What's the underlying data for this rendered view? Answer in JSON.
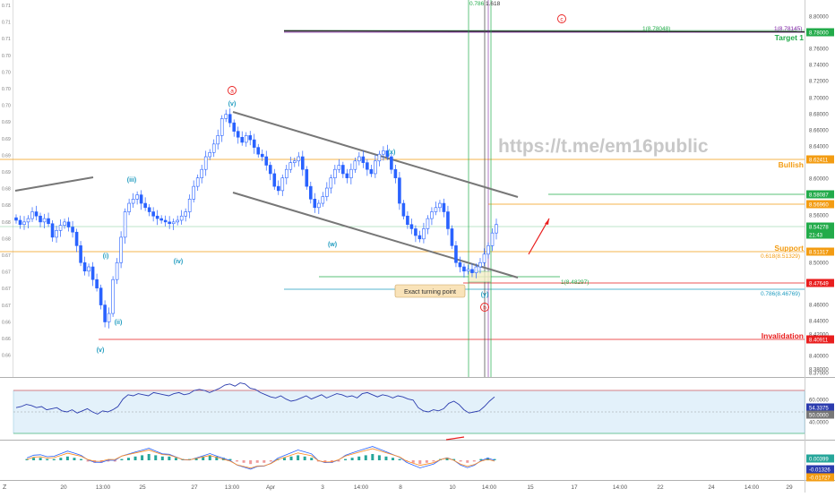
{
  "watermark": "https://t.me/em16public",
  "annotations": {
    "wave_a": "a",
    "wave_b": "b",
    "wave_c": "c",
    "wave_i": "(i)",
    "wave_ii": "(ii)",
    "wave_iii": "(iii)",
    "wave_iv": "(iv)",
    "wave_v_top": "(v)",
    "wave_v_low": "(v)",
    "wave_w": "(w)",
    "wave_x": "(x)",
    "wave_y": "(y)",
    "turning_point": "Exact turning point",
    "target": "Target 1",
    "bullish": "Bullish",
    "support": "Support",
    "invalidation": "Invalidation",
    "fib_top": "0.786",
    "fib_top2": "1.618",
    "fib_1": "1(8.78048)",
    "fib_1b": "1(8.78145)",
    "fib_618": "0.618(8.51329)",
    "fib_1c": "1(8.48297)",
    "fib_786": "0.786(8.46769)"
  },
  "colors": {
    "candle": "#2962ff",
    "green": "#22ab4a",
    "orange": "#f39c12",
    "red": "#e91e1e",
    "cyan": "#1e9bbf",
    "channel": "#777777"
  },
  "price_axis": [
    {
      "text": "8.80000"
    },
    {
      "text": "8.78000",
      "badge": "green"
    },
    {
      "text": "8.76000"
    },
    {
      "text": "8.74000"
    },
    {
      "text": "8.72000"
    },
    {
      "text": "8.70000"
    },
    {
      "text": "8.68000"
    },
    {
      "text": "8.66000"
    },
    {
      "text": "8.64000"
    },
    {
      "text": "8.62411",
      "badge": "orange"
    },
    {
      "text": "8.60000"
    },
    {
      "text": "8.58087",
      "badge": "green"
    },
    {
      "text": "8.56960",
      "badge": "orange"
    },
    {
      "text": "8.56000"
    },
    {
      "text": "8.54278",
      "badge": "green"
    },
    {
      "text": "21:43",
      "badge": "green"
    },
    {
      "text": "8.51317",
      "badge": "orange"
    },
    {
      "text": "8.50000"
    },
    {
      "text": "8.47649",
      "badge": "red"
    },
    {
      "text": "8.46000"
    },
    {
      "text": "8.44000"
    },
    {
      "text": "8.42000"
    },
    {
      "text": "8.40911",
      "badge": "red"
    },
    {
      "text": "8.40000"
    },
    {
      "text": "8.38000"
    },
    {
      "text": "8.37000"
    }
  ],
  "left_axis": [
    "0.71",
    "0.71",
    "0.71",
    "0.70",
    "0.70",
    "0.70",
    "0.70",
    "0.69",
    "0.69",
    "0.69",
    "0.69",
    "0.68",
    "0.68",
    "0.68",
    "0.68",
    "0.67",
    "0.67",
    "0.67",
    "0.67",
    "0.66",
    "0.66",
    "0.66"
  ],
  "time_axis": [
    "20",
    "13:00",
    "25",
    "27",
    "13:00",
    "Apr",
    "3",
    "14:00",
    "8",
    "10",
    "14:00",
    "15",
    "17",
    "14:00",
    "22",
    "24",
    "14:00",
    "29"
  ],
  "rsi_axis": [
    {
      "text": "60.0000"
    },
    {
      "text": "54.3375",
      "badge": "blue"
    },
    {
      "text": "50.0000",
      "badge": "gray"
    },
    {
      "text": "40.0000"
    }
  ],
  "macd_axis": [
    {
      "text": "0.00399",
      "badge": "cyan"
    },
    {
      "text": "-0.01326",
      "badge": "blue"
    },
    {
      "text": "-0.01727",
      "badge": "orange"
    }
  ],
  "chart_data": {
    "type": "candlestick",
    "title": "",
    "ylim": [
      8.365,
      8.81
    ],
    "close_path": [
      8.55,
      8.545,
      8.548,
      8.552,
      8.56,
      8.555,
      8.548,
      8.552,
      8.546,
      8.53,
      8.538,
      8.544,
      8.548,
      8.542,
      8.536,
      8.52,
      8.5,
      8.49,
      8.495,
      8.48,
      8.47,
      8.45,
      8.43,
      8.44,
      8.48,
      8.5,
      8.53,
      8.56,
      8.57,
      8.575,
      8.58,
      8.57,
      8.565,
      8.56,
      8.555,
      8.552,
      8.55,
      8.548,
      8.546,
      8.548,
      8.55,
      8.555,
      8.56,
      8.575,
      8.59,
      8.6,
      8.61,
      8.625,
      8.63,
      8.64,
      8.65,
      8.67,
      8.675,
      8.665,
      8.655,
      8.648,
      8.642,
      8.65,
      8.645,
      8.636,
      8.628,
      8.625,
      8.615,
      8.605,
      8.59,
      8.585,
      8.6,
      8.61,
      8.618,
      8.62,
      8.625,
      8.61,
      8.59,
      8.575,
      8.565,
      8.57,
      8.578,
      8.588,
      8.6,
      8.61,
      8.615,
      8.605,
      8.6,
      8.61,
      8.62,
      8.625,
      8.618,
      8.61,
      8.605,
      8.62,
      8.628,
      8.632,
      8.625,
      8.61,
      8.6,
      8.57,
      8.555,
      8.545,
      8.54,
      8.532,
      8.528,
      8.54,
      8.552,
      8.56,
      8.565,
      8.57,
      8.56,
      8.54,
      8.52,
      8.5,
      8.495,
      8.49,
      8.492,
      8.488,
      8.495,
      8.5,
      8.51,
      8.52,
      8.535,
      8.545
    ],
    "rsi": [
      44,
      45,
      47,
      46,
      44,
      45,
      42,
      43,
      44,
      41,
      40,
      42,
      39,
      41,
      43,
      40,
      38,
      41,
      40,
      42,
      45,
      52,
      56,
      55,
      57,
      56,
      55,
      58,
      57,
      56,
      55,
      57,
      58,
      56,
      57,
      60,
      61,
      60,
      58,
      60,
      62,
      65,
      66,
      64,
      67,
      66,
      62,
      61,
      58,
      56,
      54,
      53,
      55,
      52,
      50,
      51,
      53,
      55,
      52,
      54,
      56,
      53,
      55,
      57,
      56,
      54,
      55,
      53,
      57,
      58,
      56,
      54,
      56,
      55,
      53,
      55,
      54,
      52,
      51,
      44,
      41,
      40,
      42,
      41,
      43,
      48,
      50,
      47,
      42,
      39,
      40,
      41,
      45,
      50,
      54
    ],
    "macd_hist": [
      1,
      2,
      2,
      1,
      1,
      2,
      3,
      2,
      1,
      -1,
      -2,
      -2,
      -1,
      -1,
      1,
      2,
      3,
      4,
      5,
      4,
      3,
      3,
      2,
      1,
      1,
      2,
      3,
      4,
      3,
      2,
      1,
      -1,
      -2,
      -3,
      -2,
      -2,
      -1,
      1,
      2,
      3,
      4,
      3,
      2,
      -1,
      -2,
      -2,
      -1,
      1,
      2,
      3,
      4,
      5,
      4,
      3,
      2,
      1,
      -1,
      -2,
      -3,
      -2,
      -1,
      1,
      2,
      1,
      -1,
      -2,
      -1,
      1,
      2,
      1
    ]
  }
}
